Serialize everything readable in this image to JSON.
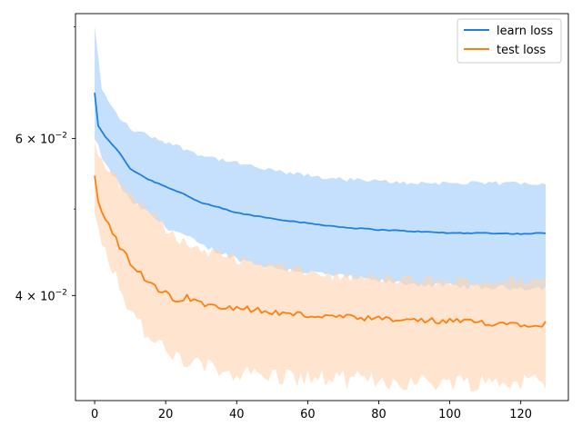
{
  "chart_data": {
    "type": "line",
    "yscale": "log",
    "xlim": [
      -5.4,
      133.4
    ],
    "ylim": [
      0.0305,
      0.0828
    ],
    "x_ticks": [
      0,
      20,
      40,
      60,
      80,
      100,
      120
    ],
    "x_tick_labels": [
      "0",
      "20",
      "40",
      "60",
      "80",
      "100",
      "120"
    ],
    "y_ticks_major": [
      0.06,
      0.04
    ],
    "y_tick_labels": {
      "base": [
        "6 × 10",
        "4 × 10"
      ],
      "exp": [
        "−2",
        "−2"
      ]
    },
    "y_ticks_minor": [
      0.05,
      0.08
    ],
    "legend_position": "upper right",
    "legend": [
      "learn loss",
      "test loss"
    ],
    "colors": {
      "learn": "#1f7fe0",
      "test": "#ff7f0e",
      "learn_band": "#bbdafb",
      "test_band": "#ffd4b0",
      "overlap": "#d5c8c4"
    },
    "n_points": 128,
    "series": [
      {
        "name": "learn loss",
        "color": "#1f7fe0",
        "x_range": [
          0,
          127
        ],
        "mean_anchors": [
          [
            0,
            0.0675
          ],
          [
            1,
            0.062
          ],
          [
            3,
            0.0602
          ],
          [
            6,
            0.0585
          ],
          [
            10,
            0.0555
          ],
          [
            15,
            0.054
          ],
          [
            20,
            0.053
          ],
          [
            25,
            0.052
          ],
          [
            30,
            0.0508
          ],
          [
            35,
            0.0502
          ],
          [
            40,
            0.0495
          ],
          [
            50,
            0.0488
          ],
          [
            60,
            0.0482
          ],
          [
            70,
            0.0477
          ],
          [
            80,
            0.0474
          ],
          [
            90,
            0.0472
          ],
          [
            100,
            0.047
          ],
          [
            110,
            0.047
          ],
          [
            120,
            0.0469
          ],
          [
            127,
            0.047
          ]
        ],
        "upper_anchors": [
          [
            0,
            0.08
          ],
          [
            2,
            0.068
          ],
          [
            6,
            0.064
          ],
          [
            10,
            0.0615
          ],
          [
            20,
            0.0595
          ],
          [
            30,
            0.0575
          ],
          [
            40,
            0.0563
          ],
          [
            50,
            0.0552
          ],
          [
            60,
            0.0545
          ],
          [
            70,
            0.054
          ],
          [
            80,
            0.0537
          ],
          [
            90,
            0.0535
          ],
          [
            100,
            0.0535
          ],
          [
            110,
            0.0534
          ],
          [
            120,
            0.0535
          ],
          [
            127,
            0.0535
          ]
        ],
        "lower_anchors": [
          [
            0,
            0.06
          ],
          [
            3,
            0.056
          ],
          [
            6,
            0.054
          ],
          [
            10,
            0.051
          ],
          [
            15,
            0.0495
          ],
          [
            20,
            0.0478
          ],
          [
            25,
            0.0468
          ],
          [
            30,
            0.0455
          ],
          [
            40,
            0.044
          ],
          [
            50,
            0.043
          ],
          [
            60,
            0.0425
          ],
          [
            70,
            0.042
          ],
          [
            80,
            0.0415
          ],
          [
            90,
            0.0412
          ],
          [
            100,
            0.041
          ],
          [
            110,
            0.0408
          ],
          [
            120,
            0.0408
          ],
          [
            127,
            0.0408
          ]
        ]
      },
      {
        "name": "test loss",
        "color": "#ff7f0e",
        "x_range": [
          0,
          127
        ],
        "mean_anchors": [
          [
            0,
            0.0545
          ],
          [
            1,
            0.051
          ],
          [
            3,
            0.049
          ],
          [
            5,
            0.0475
          ],
          [
            8,
            0.0445
          ],
          [
            12,
            0.0425
          ],
          [
            16,
            0.041
          ],
          [
            20,
            0.04
          ],
          [
            25,
            0.0397
          ],
          [
            30,
            0.0392
          ],
          [
            40,
            0.0388
          ],
          [
            50,
            0.0383
          ],
          [
            60,
            0.038
          ],
          [
            70,
            0.0378
          ],
          [
            80,
            0.0376
          ],
          [
            90,
            0.0375
          ],
          [
            100,
            0.0374
          ],
          [
            110,
            0.0373
          ],
          [
            120,
            0.0372
          ],
          [
            127,
            0.0372
          ]
        ],
        "upper_anchors": [
          [
            0,
            0.059
          ],
          [
            2,
            0.0565
          ],
          [
            5,
            0.0545
          ],
          [
            10,
            0.052
          ],
          [
            15,
            0.05
          ],
          [
            20,
            0.0475
          ],
          [
            25,
            0.046
          ],
          [
            30,
            0.045
          ],
          [
            40,
            0.044
          ],
          [
            50,
            0.0432
          ],
          [
            60,
            0.0425
          ],
          [
            70,
            0.042
          ],
          [
            80,
            0.0418
          ],
          [
            90,
            0.0416
          ],
          [
            100,
            0.0415
          ],
          [
            110,
            0.0415
          ],
          [
            120,
            0.0416
          ],
          [
            127,
            0.0416
          ]
        ],
        "lower_anchors": [
          [
            0,
            0.049
          ],
          [
            3,
            0.0455
          ],
          [
            6,
            0.042
          ],
          [
            10,
            0.0385
          ],
          [
            15,
            0.036
          ],
          [
            20,
            0.0345
          ],
          [
            25,
            0.0338
          ],
          [
            30,
            0.0333
          ],
          [
            40,
            0.0328
          ],
          [
            50,
            0.0325
          ],
          [
            60,
            0.0323
          ],
          [
            70,
            0.0322
          ],
          [
            80,
            0.0321
          ],
          [
            90,
            0.032
          ],
          [
            100,
            0.032
          ],
          [
            110,
            0.032
          ],
          [
            120,
            0.032
          ],
          [
            127,
            0.032
          ]
        ]
      }
    ]
  }
}
